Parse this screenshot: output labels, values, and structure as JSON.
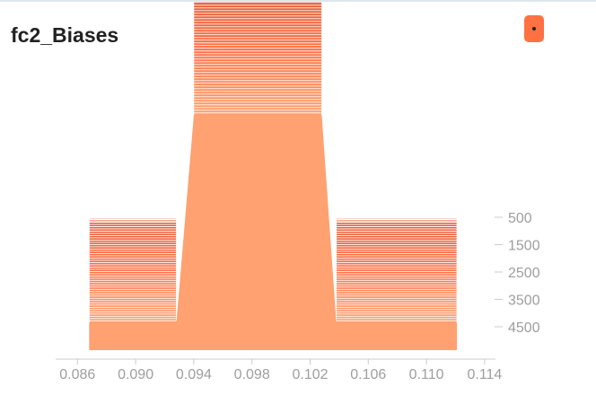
{
  "card": {
    "title": "fc2_Biases",
    "toggle_color": "#ff7043",
    "toggle_icon": "dot-icon"
  },
  "chart_data": {
    "type": "histogram-offset",
    "x_ticks": [
      0.086,
      0.09,
      0.094,
      0.098,
      0.102,
      0.106,
      0.11,
      0.114
    ],
    "x_tick_labels": [
      "0.086",
      "0.090",
      "0.094",
      "0.098",
      "0.102",
      "0.106",
      "0.110",
      "0.114"
    ],
    "xlim": [
      0.0845,
      0.1145
    ],
    "step_ticks": [
      500,
      1500,
      2500,
      3500,
      4500
    ],
    "step_tick_labels": [
      "500",
      "1500",
      "2500",
      "3500",
      "4500"
    ],
    "step_range": [
      0,
      5000
    ],
    "color_newest": "#ffa171",
    "color_mid": "#ff7043",
    "color_oldest": "#dd5533",
    "legend": "none",
    "grid": false,
    "num_series": 50,
    "series_profile": {
      "x_edges": [
        0.0845,
        0.0868,
        0.0928,
        0.094,
        0.1028,
        0.1038,
        0.1121
      ],
      "bins": [
        {
          "x_start": 0.0845,
          "x_end": 0.0868,
          "count_first": 0.0,
          "count_last": 0.0
        },
        {
          "x_start": 0.0868,
          "x_end": 0.0928,
          "count_first": 0.0,
          "count_last": 0.11
        },
        {
          "x_start": 0.094,
          "x_end": 0.1028,
          "count_first": 0.93,
          "count_last": 0.95
        },
        {
          "x_start": 0.1038,
          "x_end": 0.1121,
          "count_first": 0.0,
          "count_last": 0.11
        }
      ]
    }
  }
}
